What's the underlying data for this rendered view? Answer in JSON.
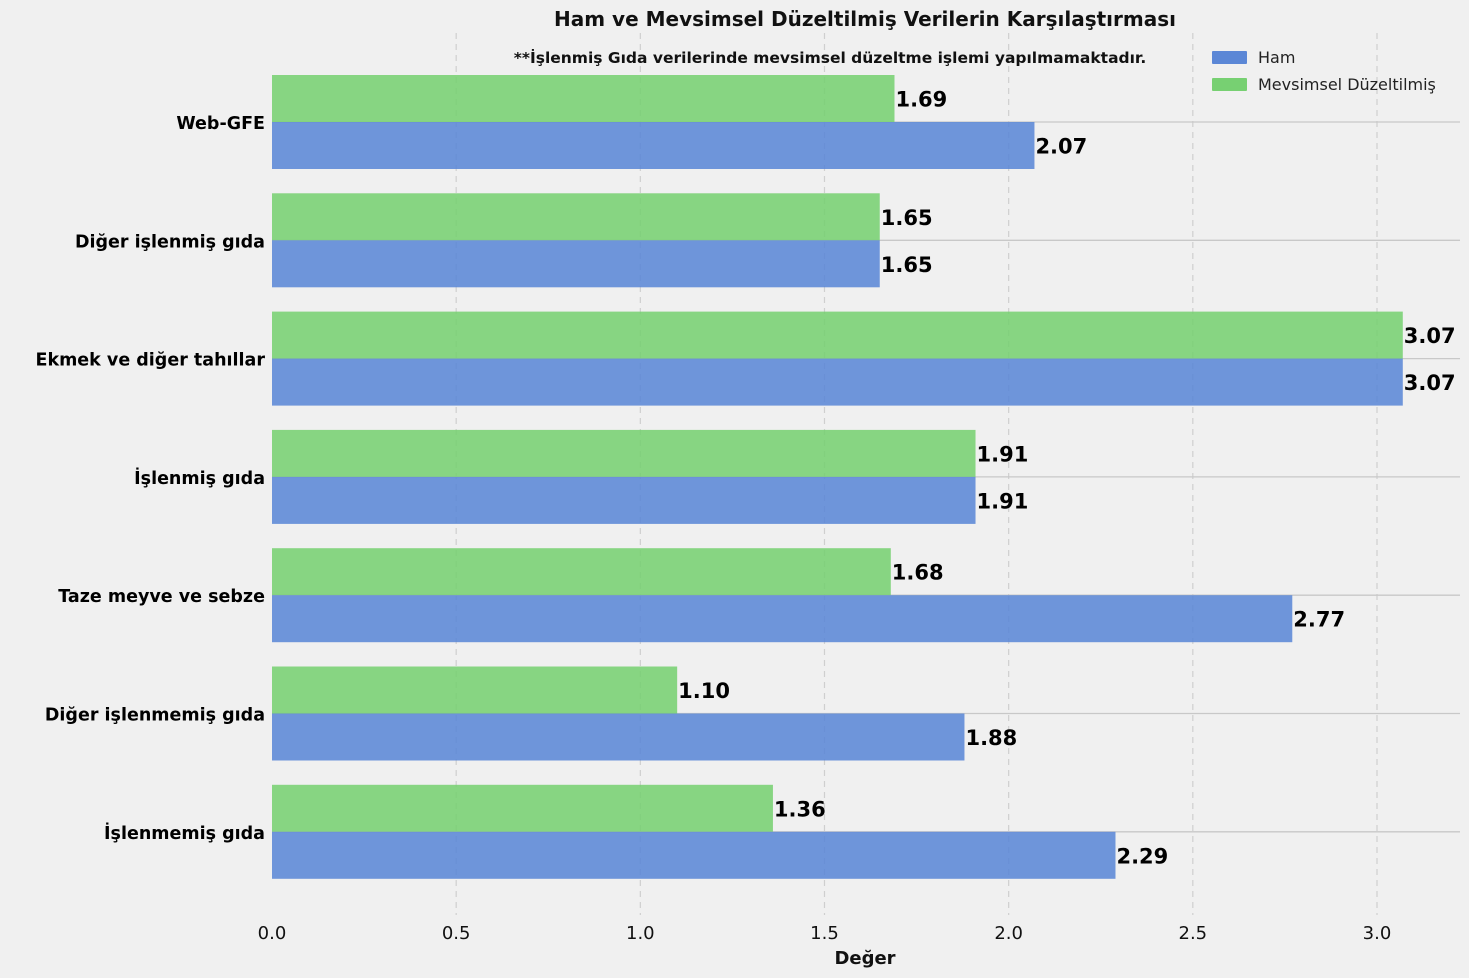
{
  "chart_data": {
    "type": "bar",
    "orientation": "horizontal",
    "title": "Ham ve Mevsimsel Düzeltilmiş Verilerin Karşılaştırması",
    "note": "**İşlenmiş Gıda verilerinde mevsimsel düzeltme işlemi yapılmamaktadır.",
    "xlabel": "Değer",
    "ylabel": "",
    "xlim": [
      0,
      3.25
    ],
    "xticks": [
      0.0,
      0.5,
      1.0,
      1.5,
      2.0,
      2.5,
      3.0
    ],
    "xtick_labels": [
      "0.0",
      "0.5",
      "1.0",
      "1.5",
      "2.0",
      "2.5",
      "3.0"
    ],
    "categories": [
      "Web-GFE",
      "Diğer işlenmiş gıda",
      "Ekmek ve diğer tahıllar",
      "İşlenmiş gıda",
      "Taze meyve ve sebze",
      "Diğer işlenmemiş gıda",
      "İşlenmemiş gıda"
    ],
    "series": [
      {
        "name": "Ham",
        "color": "#5b87d6",
        "values": [
          2.07,
          1.65,
          3.07,
          1.91,
          2.77,
          1.88,
          2.29
        ],
        "labels": [
          "2.07",
          "1.65",
          "3.07",
          "1.91",
          "2.77",
          "1.88",
          "2.29"
        ]
      },
      {
        "name": "Mevsimsel Düzeltilmiş",
        "color": "#77d072",
        "values": [
          1.69,
          1.65,
          3.07,
          1.91,
          1.68,
          1.1,
          1.36
        ],
        "labels": [
          "1.69",
          "1.65",
          "3.07",
          "1.91",
          "1.68",
          "1.10",
          "1.36"
        ]
      }
    ],
    "grid": {
      "x": "dashed",
      "y": "solid"
    },
    "legend_position": "top-right"
  }
}
